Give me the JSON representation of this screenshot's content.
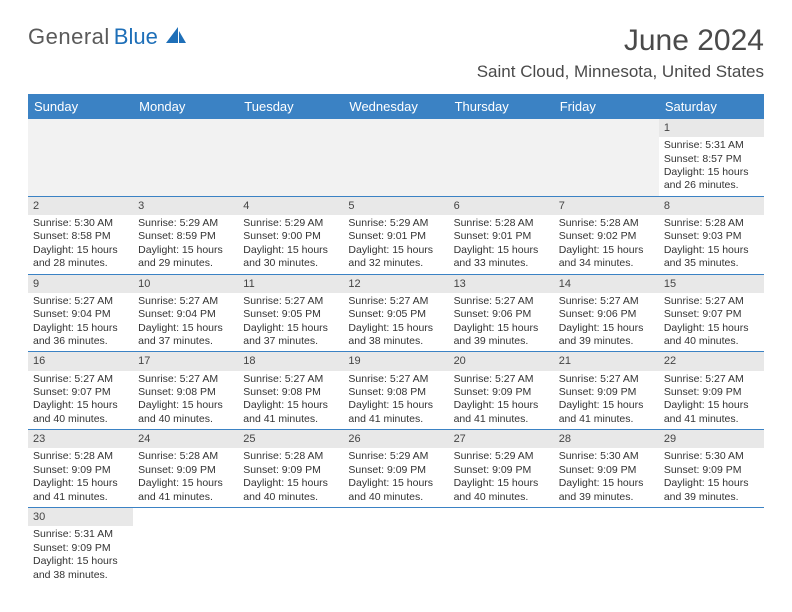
{
  "brand": {
    "text_general": "General",
    "text_blue": "Blue",
    "general_color": "#5a5a5a",
    "blue_color": "#1e6fb8",
    "sail_color": "#1e6fb8",
    "font_size": 22
  },
  "header": {
    "month_title": "June 2024",
    "location": "Saint Cloud, Minnesota, United States",
    "title_color": "#4a4a4a",
    "title_fontsize": 30,
    "location_fontsize": 17
  },
  "calendar": {
    "header_bg": "#3b82c4",
    "header_text_color": "#ffffff",
    "row_border_color": "#3b82c4",
    "daynum_bg": "#e8e8e8",
    "empty_bg": "#f2f2f2",
    "cell_font_size": 10.5,
    "day_names": [
      "Sunday",
      "Monday",
      "Tuesday",
      "Wednesday",
      "Thursday",
      "Friday",
      "Saturday"
    ],
    "weeks": [
      [
        null,
        null,
        null,
        null,
        null,
        null,
        {
          "n": "1",
          "sunrise": "Sunrise: 5:31 AM",
          "sunset": "Sunset: 8:57 PM",
          "d1": "Daylight: 15 hours",
          "d2": "and 26 minutes."
        }
      ],
      [
        {
          "n": "2",
          "sunrise": "Sunrise: 5:30 AM",
          "sunset": "Sunset: 8:58 PM",
          "d1": "Daylight: 15 hours",
          "d2": "and 28 minutes."
        },
        {
          "n": "3",
          "sunrise": "Sunrise: 5:29 AM",
          "sunset": "Sunset: 8:59 PM",
          "d1": "Daylight: 15 hours",
          "d2": "and 29 minutes."
        },
        {
          "n": "4",
          "sunrise": "Sunrise: 5:29 AM",
          "sunset": "Sunset: 9:00 PM",
          "d1": "Daylight: 15 hours",
          "d2": "and 30 minutes."
        },
        {
          "n": "5",
          "sunrise": "Sunrise: 5:29 AM",
          "sunset": "Sunset: 9:01 PM",
          "d1": "Daylight: 15 hours",
          "d2": "and 32 minutes."
        },
        {
          "n": "6",
          "sunrise": "Sunrise: 5:28 AM",
          "sunset": "Sunset: 9:01 PM",
          "d1": "Daylight: 15 hours",
          "d2": "and 33 minutes."
        },
        {
          "n": "7",
          "sunrise": "Sunrise: 5:28 AM",
          "sunset": "Sunset: 9:02 PM",
          "d1": "Daylight: 15 hours",
          "d2": "and 34 minutes."
        },
        {
          "n": "8",
          "sunrise": "Sunrise: 5:28 AM",
          "sunset": "Sunset: 9:03 PM",
          "d1": "Daylight: 15 hours",
          "d2": "and 35 minutes."
        }
      ],
      [
        {
          "n": "9",
          "sunrise": "Sunrise: 5:27 AM",
          "sunset": "Sunset: 9:04 PM",
          "d1": "Daylight: 15 hours",
          "d2": "and 36 minutes."
        },
        {
          "n": "10",
          "sunrise": "Sunrise: 5:27 AM",
          "sunset": "Sunset: 9:04 PM",
          "d1": "Daylight: 15 hours",
          "d2": "and 37 minutes."
        },
        {
          "n": "11",
          "sunrise": "Sunrise: 5:27 AM",
          "sunset": "Sunset: 9:05 PM",
          "d1": "Daylight: 15 hours",
          "d2": "and 37 minutes."
        },
        {
          "n": "12",
          "sunrise": "Sunrise: 5:27 AM",
          "sunset": "Sunset: 9:05 PM",
          "d1": "Daylight: 15 hours",
          "d2": "and 38 minutes."
        },
        {
          "n": "13",
          "sunrise": "Sunrise: 5:27 AM",
          "sunset": "Sunset: 9:06 PM",
          "d1": "Daylight: 15 hours",
          "d2": "and 39 minutes."
        },
        {
          "n": "14",
          "sunrise": "Sunrise: 5:27 AM",
          "sunset": "Sunset: 9:06 PM",
          "d1": "Daylight: 15 hours",
          "d2": "and 39 minutes."
        },
        {
          "n": "15",
          "sunrise": "Sunrise: 5:27 AM",
          "sunset": "Sunset: 9:07 PM",
          "d1": "Daylight: 15 hours",
          "d2": "and 40 minutes."
        }
      ],
      [
        {
          "n": "16",
          "sunrise": "Sunrise: 5:27 AM",
          "sunset": "Sunset: 9:07 PM",
          "d1": "Daylight: 15 hours",
          "d2": "and 40 minutes."
        },
        {
          "n": "17",
          "sunrise": "Sunrise: 5:27 AM",
          "sunset": "Sunset: 9:08 PM",
          "d1": "Daylight: 15 hours",
          "d2": "and 40 minutes."
        },
        {
          "n": "18",
          "sunrise": "Sunrise: 5:27 AM",
          "sunset": "Sunset: 9:08 PM",
          "d1": "Daylight: 15 hours",
          "d2": "and 41 minutes."
        },
        {
          "n": "19",
          "sunrise": "Sunrise: 5:27 AM",
          "sunset": "Sunset: 9:08 PM",
          "d1": "Daylight: 15 hours",
          "d2": "and 41 minutes."
        },
        {
          "n": "20",
          "sunrise": "Sunrise: 5:27 AM",
          "sunset": "Sunset: 9:09 PM",
          "d1": "Daylight: 15 hours",
          "d2": "and 41 minutes."
        },
        {
          "n": "21",
          "sunrise": "Sunrise: 5:27 AM",
          "sunset": "Sunset: 9:09 PM",
          "d1": "Daylight: 15 hours",
          "d2": "and 41 minutes."
        },
        {
          "n": "22",
          "sunrise": "Sunrise: 5:27 AM",
          "sunset": "Sunset: 9:09 PM",
          "d1": "Daylight: 15 hours",
          "d2": "and 41 minutes."
        }
      ],
      [
        {
          "n": "23",
          "sunrise": "Sunrise: 5:28 AM",
          "sunset": "Sunset: 9:09 PM",
          "d1": "Daylight: 15 hours",
          "d2": "and 41 minutes."
        },
        {
          "n": "24",
          "sunrise": "Sunrise: 5:28 AM",
          "sunset": "Sunset: 9:09 PM",
          "d1": "Daylight: 15 hours",
          "d2": "and 41 minutes."
        },
        {
          "n": "25",
          "sunrise": "Sunrise: 5:28 AM",
          "sunset": "Sunset: 9:09 PM",
          "d1": "Daylight: 15 hours",
          "d2": "and 40 minutes."
        },
        {
          "n": "26",
          "sunrise": "Sunrise: 5:29 AM",
          "sunset": "Sunset: 9:09 PM",
          "d1": "Daylight: 15 hours",
          "d2": "and 40 minutes."
        },
        {
          "n": "27",
          "sunrise": "Sunrise: 5:29 AM",
          "sunset": "Sunset: 9:09 PM",
          "d1": "Daylight: 15 hours",
          "d2": "and 40 minutes."
        },
        {
          "n": "28",
          "sunrise": "Sunrise: 5:30 AM",
          "sunset": "Sunset: 9:09 PM",
          "d1": "Daylight: 15 hours",
          "d2": "and 39 minutes."
        },
        {
          "n": "29",
          "sunrise": "Sunrise: 5:30 AM",
          "sunset": "Sunset: 9:09 PM",
          "d1": "Daylight: 15 hours",
          "d2": "and 39 minutes."
        }
      ],
      [
        {
          "n": "30",
          "sunrise": "Sunrise: 5:31 AM",
          "sunset": "Sunset: 9:09 PM",
          "d1": "Daylight: 15 hours",
          "d2": "and 38 minutes."
        },
        null,
        null,
        null,
        null,
        null,
        null
      ]
    ]
  }
}
